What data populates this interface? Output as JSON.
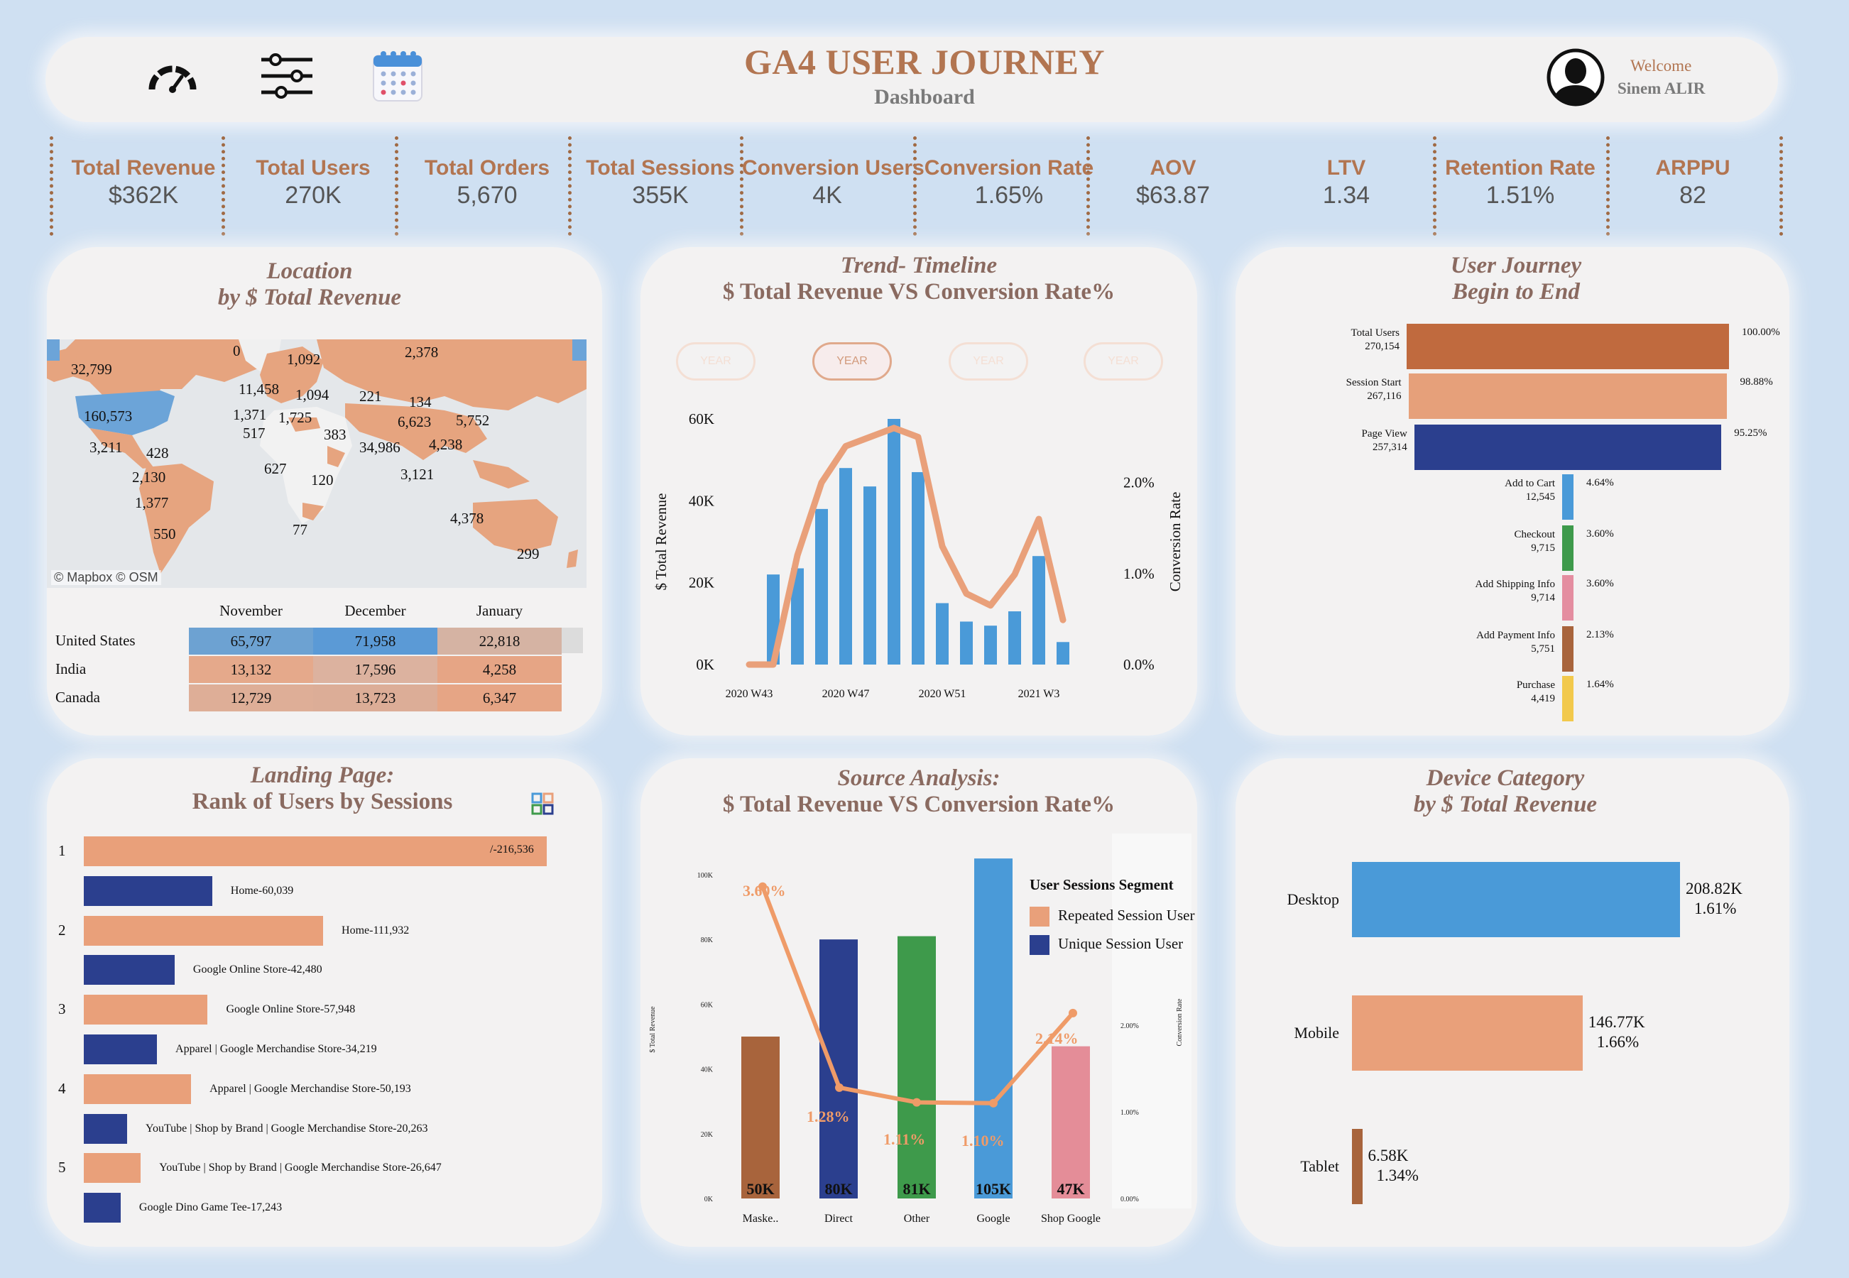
{
  "header": {
    "title": "GA4 USER JOURNEY",
    "subtitle": "Dashboard",
    "welcome": "Welcome",
    "user_name": "Sinem ALIR",
    "icons": [
      "speedometer-icon",
      "sliders-icon",
      "calendar-icon",
      "user-avatar-icon"
    ]
  },
  "kpis": [
    {
      "label": "Total Revenue",
      "value": "$362K"
    },
    {
      "label": "Total Users",
      "value": "270K"
    },
    {
      "label": "Total Orders",
      "value": "5,670"
    },
    {
      "label": "Total Sessions",
      "value": "355K"
    },
    {
      "label": "Conversion Users",
      "value": "4K"
    },
    {
      "label": "Conversion Rate",
      "value": "1.65%"
    },
    {
      "label": "AOV",
      "value": "$63.87"
    },
    {
      "label": "LTV",
      "value": "1.34"
    },
    {
      "label": "Retention Rate",
      "value": "1.51%"
    },
    {
      "label": "ARPPU",
      "value": "82"
    }
  ],
  "location": {
    "title_line1": "Location",
    "title_line2": "by $ Total Revenue",
    "map_labels": [
      "32,799",
      "0",
      "1,092",
      "2,378",
      "11,458",
      "1,094",
      "221",
      "134",
      "160,573",
      "1,371",
      "1,725",
      "6,623",
      "5,752",
      "517",
      "383",
      "34,986",
      "4,238",
      "3,211",
      "428",
      "627",
      "3,121",
      "2,130",
      "120",
      "1,377",
      "4,378",
      "77",
      "550",
      "299"
    ],
    "map_credit": "© Mapbox  © OSM",
    "table": {
      "columns": [
        "November",
        "December",
        "January"
      ],
      "rows": [
        {
          "country": "United States",
          "values": [
            "65,797",
            "71,958",
            "22,818"
          ]
        },
        {
          "country": "India",
          "values": [
            "13,132",
            "17,596",
            "4,258"
          ]
        },
        {
          "country": "Canada",
          "values": [
            "12,729",
            "13,723",
            "6,347"
          ]
        }
      ]
    }
  },
  "trend": {
    "title_line1": "Trend- Timeline",
    "title_line2": "$ Total Revenue VS Conversion Rate%",
    "toggles": [
      "YEAR",
      "YEAR",
      "YEAR",
      "YEAR"
    ],
    "chart_data": {
      "type": "bar",
      "xlabel": "",
      "ylabel": "$ Total Revenue",
      "y2label": "Conversion Rate",
      "ylim": [
        0,
        60000
      ],
      "y2lim": [
        0,
        0.027
      ],
      "ytick_labels": [
        "0K",
        "20K",
        "40K",
        "60K"
      ],
      "y2tick_labels": [
        "0.0%",
        "1.0%",
        "2.0%"
      ],
      "xtick_labels": [
        "2020 W43",
        "2020 W47",
        "2020 W51",
        "2021 W3"
      ],
      "categories": [
        "2020 W43",
        "2020 W44",
        "2020 W45",
        "2020 W46",
        "2020 W47",
        "2020 W48",
        "2020 W49",
        "2020 W50",
        "2020 W51",
        "2020 W52",
        "2020 W53",
        "2021 W1",
        "2021 W2",
        "2021 W3",
        "2021 W4"
      ],
      "series": [
        {
          "name": "$ Total Revenue",
          "kind": "bar",
          "color": "#4a9ad8",
          "values": [
            0,
            22000,
            23500,
            38000,
            48000,
            43500,
            60000,
            47000,
            15000,
            10500,
            9500,
            13000,
            26500,
            5500,
            null
          ]
        },
        {
          "name": "Conversion Rate",
          "kind": "line",
          "color": "#e9a07a",
          "values": [
            0.0,
            0.0,
            0.012,
            0.02,
            0.024,
            0.025,
            0.026,
            0.025,
            0.013,
            0.0078,
            0.0065,
            0.0099,
            0.016,
            0.0049,
            null
          ]
        }
      ]
    }
  },
  "journey": {
    "title_line1": "User Journey",
    "title_line2": "Begin to End",
    "chart_data": {
      "type": "bar",
      "orientation": "horizontal-funnel",
      "categories": [
        "Total Users",
        "Session Start",
        "Page View",
        "Add to Cart",
        "Checkout",
        "Add Shipping Info",
        "Add Payment Info",
        "Purchase"
      ],
      "values": [
        270154,
        267116,
        257314,
        12545,
        9715,
        9714,
        5751,
        4419
      ],
      "value_labels": [
        "270,154",
        "267,116",
        "257,314",
        "12,545",
        "9,715",
        "9,714",
        "5,751",
        "4,419"
      ],
      "percent_labels": [
        "100.00%",
        "98.88%",
        "95.25%",
        "4.64%",
        "3.60%",
        "3.60%",
        "2.13%",
        "1.64%"
      ],
      "colors": [
        "#c06a3e",
        "#e6a07a",
        "#2b3f8e",
        "#4a9ad8",
        "#3e9a4b",
        "#e48da0",
        "#a8643c",
        "#f2c94c"
      ]
    }
  },
  "landing": {
    "title_line1": "Landing Page:",
    "title_line2": "Rank of Users by Sessions",
    "icon": "grid-icon",
    "chart_data": {
      "type": "bar",
      "orientation": "horizontal",
      "ranks": [
        "1",
        "2",
        "3",
        "4",
        "5"
      ],
      "categories": [
        "/",
        "Home",
        "Home",
        "Google Online Store",
        "Google Online Store",
        "Apparel | Google Merchandise Store",
        "Apparel | Google Merchandise Store",
        "YouTube | Shop by Brand | Google Merchandise Store",
        "YouTube | Shop by Brand | Google Merchandise Store",
        "Google Dino Game Tee"
      ],
      "values": [
        216536,
        60039,
        111932,
        42480,
        57948,
        34219,
        50193,
        20263,
        26647,
        17243
      ],
      "labels": [
        "/-216,536",
        "Home-60,039",
        "Home-111,932",
        "Google Online Store-42,480",
        "Google Online Store-57,948",
        "Apparel | Google Merchandise Store-34,219",
        "Apparel | Google Merchandise Store-50,193",
        "YouTube | Shop by Brand | Google Merchandise Store-20,263",
        "YouTube | Shop by Brand | Google Merchandise Store-26,647",
        "Google Dino Game Tee-17,243"
      ],
      "series_kind": [
        "sessions",
        "users",
        "sessions",
        "users",
        "sessions",
        "users",
        "sessions",
        "users",
        "sessions",
        "users"
      ],
      "colors": {
        "sessions": "#e9a07a",
        "users": "#2b3f8e"
      }
    }
  },
  "source": {
    "title_line1": "Source Analysis:",
    "title_line2": "$ Total Revenue VS Conversion Rate%",
    "legend_title": "User Sessions Segment",
    "legend_items": [
      {
        "label": "Repeated Session User",
        "color": "#e9a07a"
      },
      {
        "label": "Unique Session User",
        "color": "#2b3f8e"
      }
    ],
    "chart_data": {
      "type": "bar",
      "ylabel": "$ Total Revenue",
      "y2label": "Conversion Rate",
      "ylim": [
        0,
        107000
      ],
      "y2lim": [
        0,
        0.04
      ],
      "ytick_labels": [
        "0K",
        "20K",
        "40K",
        "60K",
        "80K",
        "100K"
      ],
      "y2tick_labels": [
        "0.00%",
        "1.00%",
        "2.00%"
      ],
      "categories": [
        "Maske..",
        "Direct",
        "Other",
        "Google",
        "Shop Google"
      ],
      "values": [
        50000,
        80000,
        81000,
        105000,
        47000
      ],
      "value_labels": [
        "50K",
        "80K",
        "81K",
        "105K",
        "47K"
      ],
      "bar_colors": [
        "#a8643c",
        "#2b3f8e",
        "#3e9a4b",
        "#4a9ad8",
        "#e48d98"
      ],
      "line_values": [
        0.036,
        0.0128,
        0.0111,
        0.011,
        0.0214
      ],
      "line_labels": [
        "3.60%",
        "1.28%",
        "1.11%",
        "1.10%",
        "2.14%"
      ],
      "line_color": "#ef9b68"
    }
  },
  "device": {
    "title_line1": "Device Category",
    "title_line2": "by $ Total Revenue",
    "chart_data": {
      "type": "bar",
      "orientation": "horizontal",
      "categories": [
        "Desktop",
        "Mobile",
        "Tablet"
      ],
      "values": [
        208820,
        146770,
        6580
      ],
      "value_labels": [
        "208.82K",
        "146.77K",
        "6.58K"
      ],
      "rate_labels": [
        "1.61%",
        "1.66%",
        "1.34%"
      ],
      "colors": [
        "#4a9ad8",
        "#e9a07a",
        "#a8643c"
      ]
    }
  }
}
